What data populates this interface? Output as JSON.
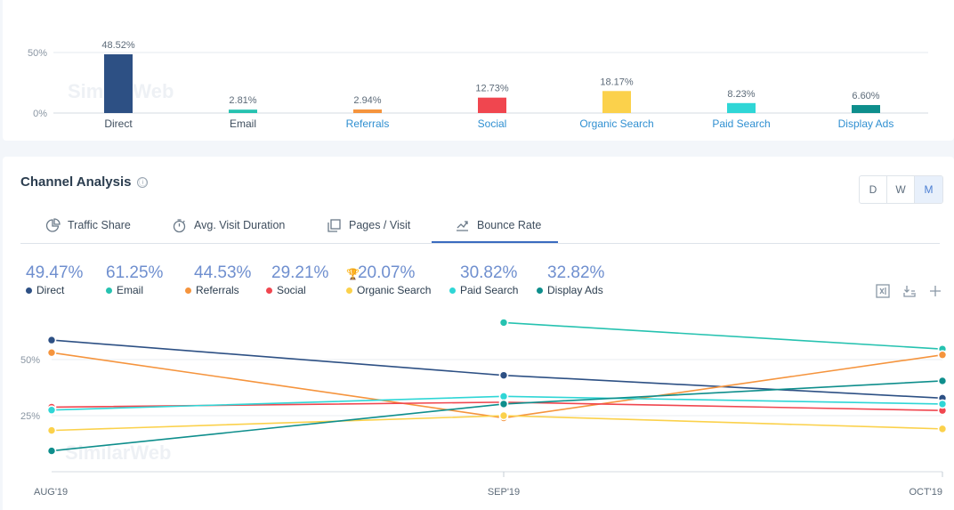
{
  "top_bar_chart": {
    "y_ticks": [
      "50%",
      "0%"
    ],
    "bars": [
      {
        "label": "Direct",
        "value_label": "48.52%",
        "value": 48.52,
        "color": "#2d5084",
        "link": false
      },
      {
        "label": "Email",
        "value_label": "2.81%",
        "value": 2.81,
        "color": "#26c2b0",
        "link": false
      },
      {
        "label": "Referrals",
        "value_label": "2.94%",
        "value": 2.94,
        "color": "#f5943d",
        "link": true
      },
      {
        "label": "Social",
        "value_label": "12.73%",
        "value": 12.73,
        "color": "#f0464f",
        "link": true
      },
      {
        "label": "Organic Search",
        "value_label": "18.17%",
        "value": 18.17,
        "color": "#fbd14b",
        "link": true
      },
      {
        "label": "Paid Search",
        "value_label": "8.23%",
        "value": 8.23,
        "color": "#2fd6d6",
        "link": true
      },
      {
        "label": "Display Ads",
        "value_label": "6.60%",
        "value": 6.6,
        "color": "#0e8e8c",
        "link": true
      }
    ],
    "watermark": "SimilarWeb"
  },
  "channel_analysis": {
    "title": "Channel Analysis",
    "info_icon": "ⓘ",
    "granularity": [
      "D",
      "W",
      "M"
    ],
    "active_granularity": "M",
    "tabs": [
      {
        "label": "Traffic Share",
        "icon": "pie-chart-icon"
      },
      {
        "label": "Avg. Visit Duration",
        "icon": "stopwatch-icon"
      },
      {
        "label": "Pages / Visit",
        "icon": "pages-icon"
      },
      {
        "label": "Bounce Rate",
        "icon": "bounce-rate-icon",
        "active": true
      }
    ],
    "legend": [
      {
        "name": "Direct",
        "value": "49.47%",
        "color": "#2d5084"
      },
      {
        "name": "Email",
        "value": "61.25%",
        "color": "#26c2b0"
      },
      {
        "name": "Referrals",
        "value": "44.53%",
        "color": "#f5943d"
      },
      {
        "name": "Social",
        "value": "29.21%",
        "color": "#f0464f"
      },
      {
        "name": "Organic Search",
        "value": "20.07%",
        "color": "#fbd14b",
        "trophy": true
      },
      {
        "name": "Paid Search",
        "value": "30.82%",
        "color": "#2fd6d6"
      },
      {
        "name": "Display Ads",
        "value": "32.82%",
        "color": "#0e8e8c"
      }
    ],
    "toolbar": [
      "excel-icon",
      "download-icon",
      "add-icon"
    ],
    "watermark": "SimilarWeb"
  },
  "chart_data": [
    {
      "type": "bar",
      "categories": [
        "Direct",
        "Email",
        "Referrals",
        "Social",
        "Organic Search",
        "Paid Search",
        "Display Ads"
      ],
      "values": [
        48.52,
        2.81,
        2.94,
        12.73,
        18.17,
        8.23,
        6.6
      ],
      "ylim": [
        0,
        50
      ],
      "grid": true
    },
    {
      "type": "line",
      "x": [
        "AUG'19",
        "SEP'19",
        "OCT'19"
      ],
      "y_ticks": [
        "50%",
        "25%"
      ],
      "ylim": [
        0,
        70
      ],
      "grid": true,
      "series": [
        {
          "name": "Direct",
          "values": [
            58.7,
            43.0,
            32.8
          ],
          "color": "#2d5084"
        },
        {
          "name": "Email",
          "values": [
            null,
            66.5,
            54.7
          ],
          "color": "#26c2b0"
        },
        {
          "name": "Referrals",
          "values": [
            53.1,
            24.0,
            52.1
          ],
          "color": "#f5943d"
        },
        {
          "name": "Social",
          "values": [
            28.8,
            31.0,
            27.3
          ],
          "color": "#f0464f"
        },
        {
          "name": "Organic Search",
          "values": [
            18.4,
            25.0,
            19.1
          ],
          "color": "#fbd14b"
        },
        {
          "name": "Paid Search",
          "values": [
            27.5,
            33.6,
            30.2
          ],
          "color": "#2fd6d6"
        },
        {
          "name": "Display Ads",
          "values": [
            9.3,
            30.2,
            40.5
          ],
          "color": "#0e8e8c"
        }
      ]
    }
  ]
}
